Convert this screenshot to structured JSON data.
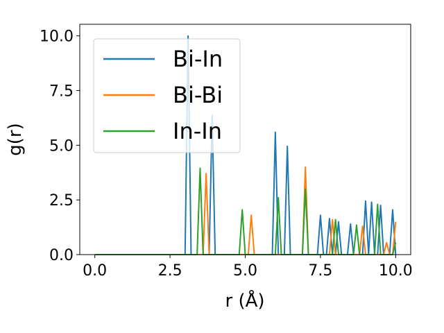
{
  "chart_data": {
    "type": "line",
    "xlabel": "r (Å)",
    "ylabel": "g(r)",
    "x": [
      0,
      0.1,
      0.2,
      0.3,
      0.4,
      0.5,
      0.6,
      0.7,
      0.8,
      0.9,
      1,
      1.1,
      1.2,
      1.3,
      1.4,
      1.5,
      1.6,
      1.7,
      1.8,
      1.9,
      2,
      2.1,
      2.2,
      2.3,
      2.4,
      2.5,
      2.6,
      2.7,
      2.8,
      2.9,
      3,
      3.1,
      3.2,
      3.3,
      3.4,
      3.5,
      3.6,
      3.7,
      3.8,
      3.9,
      4,
      4.1,
      4.2,
      4.3,
      4.4,
      4.5,
      4.6,
      4.7,
      4.8,
      4.9,
      5,
      5.1,
      5.2,
      5.3,
      5.4,
      5.5,
      5.6,
      5.7,
      5.8,
      5.9,
      6,
      6.1,
      6.2,
      6.3,
      6.4,
      6.5,
      6.6,
      6.7,
      6.8,
      6.9,
      7,
      7.1,
      7.2,
      7.3,
      7.4,
      7.5,
      7.6,
      7.7,
      7.8,
      7.9,
      8,
      8.1,
      8.2,
      8.3,
      8.4,
      8.5,
      8.6,
      8.7,
      8.8,
      8.9,
      9,
      9.1,
      9.2,
      9.3,
      9.4,
      9.5,
      9.6,
      9.7,
      9.8,
      9.9,
      10
    ],
    "series": [
      {
        "name": "Bi-In",
        "color": "#1f77b4",
        "values": [
          0,
          0,
          0,
          0,
          0,
          0,
          0,
          0,
          0,
          0,
          0,
          0,
          0,
          0,
          0,
          0,
          0,
          0,
          0,
          0,
          0,
          0,
          0,
          0,
          0,
          0,
          0,
          0,
          0,
          0,
          0,
          10.0,
          0,
          0,
          0,
          0,
          0,
          0,
          0,
          6.35,
          0,
          0,
          0,
          0,
          0,
          0,
          0,
          0,
          0,
          0,
          0,
          0,
          0,
          0,
          0,
          0,
          0,
          0,
          0,
          0,
          5.6,
          0,
          0,
          0,
          4.95,
          0,
          0,
          0,
          0,
          0,
          0,
          0,
          0,
          0,
          0,
          1.8,
          0,
          0,
          1.65,
          0,
          0,
          1.5,
          0,
          0,
          0,
          1.4,
          0,
          0,
          0,
          0,
          2.45,
          0,
          2.4,
          0,
          0,
          2.25,
          0,
          0,
          0,
          2.05,
          0
        ]
      },
      {
        "name": "Bi-Bi",
        "color": "#ff7f0e",
        "values": [
          0,
          0,
          0,
          0,
          0,
          0,
          0,
          0,
          0,
          0,
          0,
          0,
          0,
          0,
          0,
          0,
          0,
          0,
          0,
          0,
          0,
          0,
          0,
          0,
          0,
          0,
          0,
          0,
          0,
          0,
          0,
          0,
          0,
          0,
          0,
          0,
          0,
          3.7,
          0,
          0,
          0,
          0,
          0,
          0,
          0,
          0,
          0,
          0,
          0,
          0,
          0,
          0,
          1.8,
          0,
          0,
          0,
          0,
          0,
          0,
          0,
          0,
          0,
          0,
          0,
          0,
          0,
          0,
          0,
          0,
          0,
          4.0,
          0,
          0,
          0,
          0,
          0,
          0,
          0,
          0,
          1.6,
          0,
          0,
          0,
          0,
          0,
          0,
          0,
          0,
          0,
          1.3,
          0,
          0,
          0,
          0,
          0,
          0,
          0,
          0.55,
          0,
          0,
          1.5
        ]
      },
      {
        "name": "In-In",
        "color": "#2ca02c",
        "values": [
          0,
          0,
          0,
          0,
          0,
          0,
          0,
          0,
          0,
          0,
          0,
          0,
          0,
          0,
          0,
          0,
          0,
          0,
          0,
          0,
          0,
          0,
          0,
          0,
          0,
          0,
          0,
          0,
          0,
          0,
          0,
          0,
          0,
          0,
          0,
          3.95,
          0,
          0,
          0,
          0,
          0,
          0,
          0,
          0,
          0,
          0,
          0,
          0,
          0,
          2.05,
          0,
          0,
          0,
          0,
          0,
          0,
          0,
          0,
          0,
          0,
          0,
          2.6,
          0,
          0,
          0,
          0,
          0,
          0,
          0,
          0,
          3.0,
          0,
          0,
          0,
          0,
          0,
          0,
          0,
          0,
          0,
          1.6,
          0,
          0,
          0,
          0,
          0,
          0,
          1.35,
          0,
          0,
          0,
          0,
          0,
          0,
          2.3,
          0,
          0,
          0,
          0,
          0,
          0.55
        ]
      }
    ],
    "xlim": [
      -0.5,
      10.5
    ],
    "ylim": [
      0,
      10.53
    ],
    "xticks": [
      {
        "value": 0,
        "label": "0.0"
      },
      2.5,
      {
        "value": 5,
        "label": "5.0"
      },
      7.5,
      {
        "value": 10,
        "label": "10.0"
      }
    ],
    "yticks": [
      {
        "value": 0,
        "label": "0.0"
      },
      2.5,
      {
        "value": 5,
        "label": "5.0"
      },
      7.5,
      {
        "value": 10,
        "label": "10.0"
      }
    ],
    "legend": "upper left"
  }
}
